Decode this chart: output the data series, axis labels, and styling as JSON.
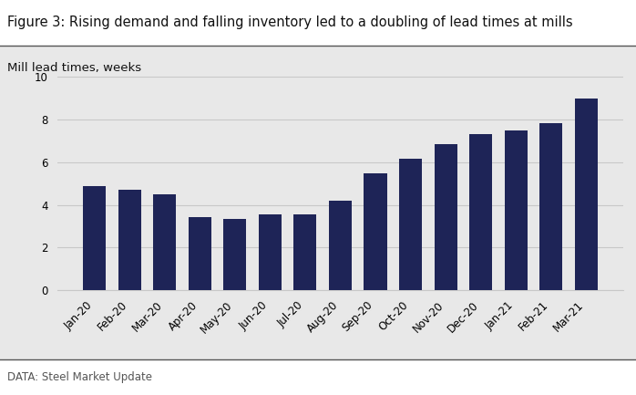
{
  "title": "Figure 3: Rising demand and falling inventory led to a doubling of lead times at mills",
  "ylabel": "Mill lead times, weeks",
  "data_source": "DATA: Steel Market Update",
  "categories": [
    "Jan-20",
    "Feb-20",
    "Mar-20",
    "Apr-20",
    "May-20",
    "Jun-20",
    "Jul-20",
    "Aug-20",
    "Sep-20",
    "Oct-20",
    "Nov-20",
    "Dec-20",
    "Jan-21",
    "Feb-21",
    "Mar-21"
  ],
  "values": [
    4.9,
    4.7,
    4.5,
    3.45,
    3.35,
    3.55,
    3.55,
    4.2,
    5.5,
    6.15,
    6.85,
    7.3,
    7.5,
    7.85,
    9.0
  ],
  "bar_color": "#1e2457",
  "chart_bg_color": "#e8e8e8",
  "title_bg_color": "#ffffff",
  "bottom_bg_color": "#ffffff",
  "grid_color": "#c8c8c8",
  "border_color": "#555555",
  "source_color": "#555555",
  "ylim": [
    0,
    10
  ],
  "yticks": [
    0,
    2,
    4,
    6,
    8,
    10
  ],
  "title_fontsize": 10.5,
  "ylabel_fontsize": 9.5,
  "tick_fontsize": 8.5,
  "source_fontsize": 8.5,
  "bar_width": 0.65
}
